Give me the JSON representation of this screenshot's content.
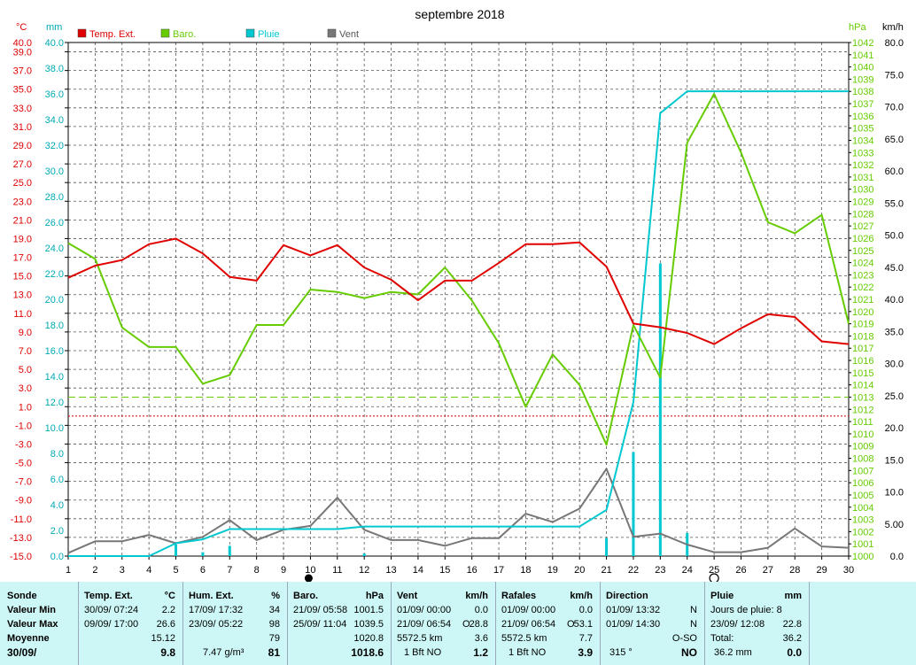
{
  "chart_data": {
    "type": "line",
    "title": "septembre 2018",
    "x": [
      1,
      2,
      3,
      4,
      5,
      6,
      7,
      8,
      9,
      10,
      11,
      12,
      13,
      14,
      15,
      16,
      17,
      18,
      19,
      20,
      21,
      22,
      23,
      24,
      25,
      26,
      27,
      28,
      29,
      30
    ],
    "x_ticks": [
      "1",
      "2",
      "3",
      "4",
      "5",
      "6",
      "7",
      "8",
      "9",
      "10",
      "11",
      "12",
      "13",
      "14",
      "15",
      "16",
      "17",
      "18",
      "19",
      "20",
      "21",
      "22",
      "23",
      "24",
      "25",
      "26",
      "27",
      "28",
      "29",
      "30"
    ],
    "axes": {
      "temp": {
        "unit": "°C",
        "range": [
          -15,
          40
        ],
        "ticks": [
          "40.0",
          "39.0",
          "37.0",
          "35.0",
          "33.0",
          "31.0",
          "29.0",
          "27.0",
          "25.0",
          "23.0",
          "21.0",
          "19.0",
          "17.0",
          "15.0",
          "13.0",
          "11.0",
          "9.0",
          "7.0",
          "5.0",
          "3.0",
          "1.0",
          "-1.0",
          "-3.0",
          "-5.0",
          "-7.0",
          "-9.0",
          "-11.0",
          "-13.0",
          "-15.0"
        ]
      },
      "rain": {
        "unit": "mm",
        "range": [
          0,
          40
        ],
        "ticks": [
          "0.0",
          "2.0",
          "4.0",
          "6.0",
          "8.0",
          "10.0",
          "12.0",
          "14.0",
          "16.0",
          "18.0",
          "20.0",
          "22.0",
          "24.0",
          "26.0",
          "28.0",
          "30.0",
          "32.0",
          "34.0",
          "36.0",
          "38.0",
          "40.0"
        ]
      },
      "baro": {
        "unit": "hPa",
        "range": [
          1000,
          1042
        ]
      },
      "wind": {
        "unit": "km/h",
        "range": [
          0,
          80
        ],
        "ticks": [
          "0.0",
          "5.00",
          "10.0",
          "15.0",
          "20.0",
          "25.0",
          "30.0",
          "35.0",
          "40.0",
          "45.0",
          "50.0",
          "55.0",
          "60.0",
          "65.0",
          "70.0",
          "75.0",
          "80.0"
        ]
      }
    },
    "grid": true,
    "legend_position": "top",
    "series": [
      {
        "name": "Temp. Ext.",
        "color": "#e00000",
        "axis": "temp",
        "values": [
          14.8,
          16.1,
          16.7,
          18.4,
          19.0,
          17.4,
          14.9,
          14.5,
          18.3,
          17.2,
          18.3,
          15.9,
          14.6,
          12.4,
          14.5,
          14.5,
          16.4,
          18.4,
          18.4,
          18.6,
          16.0,
          9.9,
          9.5,
          8.9,
          7.7,
          9.4,
          10.9,
          10.6,
          8.0,
          7.7
        ]
      },
      {
        "name": "Baro.",
        "color": "#66cc00",
        "axis": "baro",
        "values": [
          1025.6,
          1024.3,
          1018.7,
          1017.1,
          1017.1,
          1014.1,
          1014.8,
          1018.9,
          1018.9,
          1021.8,
          1021.6,
          1021.1,
          1021.6,
          1021.4,
          1023.6,
          1020.9,
          1017.4,
          1012.2,
          1016.5,
          1014.0,
          1009.1,
          1018.9,
          1014.6,
          1033.8,
          1037.8,
          1033.0,
          1027.3,
          1026.4,
          1027.9,
          1019.0
        ]
      },
      {
        "name": "Pluie",
        "color": "#00c8d0",
        "axis": "rain",
        "values": [
          0.0,
          0.0,
          0.0,
          0.0,
          1.0,
          1.3,
          2.1,
          2.1,
          2.1,
          2.1,
          2.1,
          2.3,
          2.3,
          2.3,
          2.3,
          2.3,
          2.3,
          2.3,
          2.3,
          2.3,
          3.6,
          12.0,
          34.5,
          36.2,
          36.2,
          36.2,
          36.2,
          36.2,
          36.2,
          36.2
        ],
        "daily_bars": [
          0.0,
          0.0,
          0.0,
          0.0,
          0.9,
          0.3,
          0.8,
          0.0,
          0.0,
          0.0,
          0.0,
          0.2,
          0.0,
          0.0,
          0.0,
          0.0,
          0.0,
          0.0,
          0.0,
          0.0,
          1.4,
          8.1,
          22.8,
          1.8,
          0.0,
          0.0,
          0.0,
          0.0,
          0.0,
          0.0
        ]
      },
      {
        "name": "Vent",
        "color": "#777777",
        "axis": "wind",
        "values": [
          0.5,
          2.3,
          2.3,
          3.3,
          2.0,
          3.0,
          5.6,
          2.5,
          4.1,
          4.7,
          9.1,
          4.1,
          2.5,
          2.5,
          1.6,
          2.8,
          2.8,
          6.6,
          5.3,
          7.4,
          13.6,
          3.0,
          3.5,
          1.8,
          0.6,
          0.6,
          1.3,
          4.3,
          1.5,
          1.3
        ]
      }
    ],
    "reference_lines": [
      {
        "axis": "baro",
        "value": 1013,
        "style": "dashed",
        "color": "#66cc00"
      },
      {
        "axis": "temp",
        "value": 0.0,
        "style": "dotted",
        "color": "#e00000"
      }
    ],
    "moon_markers": [
      {
        "day": 10,
        "symbol": "●"
      },
      {
        "day": 25,
        "symbol": "○"
      }
    ]
  },
  "stats": {
    "labels": {
      "sonde": "Sonde",
      "min": "Valeur Min",
      "max": "Valeur Max",
      "moy": "Moyenne",
      "date": "30/09/"
    },
    "temp": {
      "title": "Temp. Ext.",
      "unit": "°C",
      "min_date": "30/09/ 07:24",
      "min_val": "2.2",
      "max_date": "09/09/ 17:00",
      "max_val": "26.6",
      "moy": "15.12",
      "cur": "9.8"
    },
    "hum": {
      "title": "Hum. Ext.",
      "unit": "%",
      "min_date": "17/09/ 17:32",
      "min_val": "34",
      "max_date": "23/09/ 05:22",
      "max_val": "98",
      "moy": "79",
      "abs": "7.47 g/m³",
      "cur": "81"
    },
    "baro": {
      "title": "Baro.",
      "unit": "hPa",
      "min_date": "21/09/ 05:58",
      "min_val": "1001.5",
      "max_date": "25/09/ 11:04",
      "max_val": "1039.5",
      "moy": "1020.8",
      "cur": "1018.6"
    },
    "vent": {
      "title": "Vent",
      "unit": "km/h",
      "min_date": "01/09/ 00:00",
      "min_val": "0.0",
      "max_date": "21/09/ 06:54",
      "max_dir": "O",
      "max_val": "28.8",
      "dist": "5572.5 km",
      "moy": "3.6",
      "bft": "1 Bft NO",
      "cur": "1.2"
    },
    "rafales": {
      "title": "Rafales",
      "unit": "km/h",
      "min_date": "01/09/ 00:00",
      "min_val": "0.0",
      "max_date": "21/09/ 06:54",
      "max_dir": "O",
      "max_val": "53.1",
      "dist": "5572.5 km",
      "moy": "7.7",
      "bft": "1 Bft NO",
      "cur": "3.9"
    },
    "direction": {
      "title": "Direction",
      "min_date": "01/09/ 13:32",
      "min_val": "N",
      "max_date": "01/09/ 14:30",
      "max_val": "N",
      "moy": "O-SO",
      "deg": "315 °",
      "cur": "NO"
    },
    "pluie": {
      "title": "Pluie",
      "unit": "mm",
      "jours": "Jours de pluie: 8",
      "max_date": "23/09/ 12:08",
      "max_val": "22.8",
      "total_label": "Total:",
      "total": "36.2",
      "cur_total": "36.2 mm",
      "cur": "0.0"
    }
  }
}
